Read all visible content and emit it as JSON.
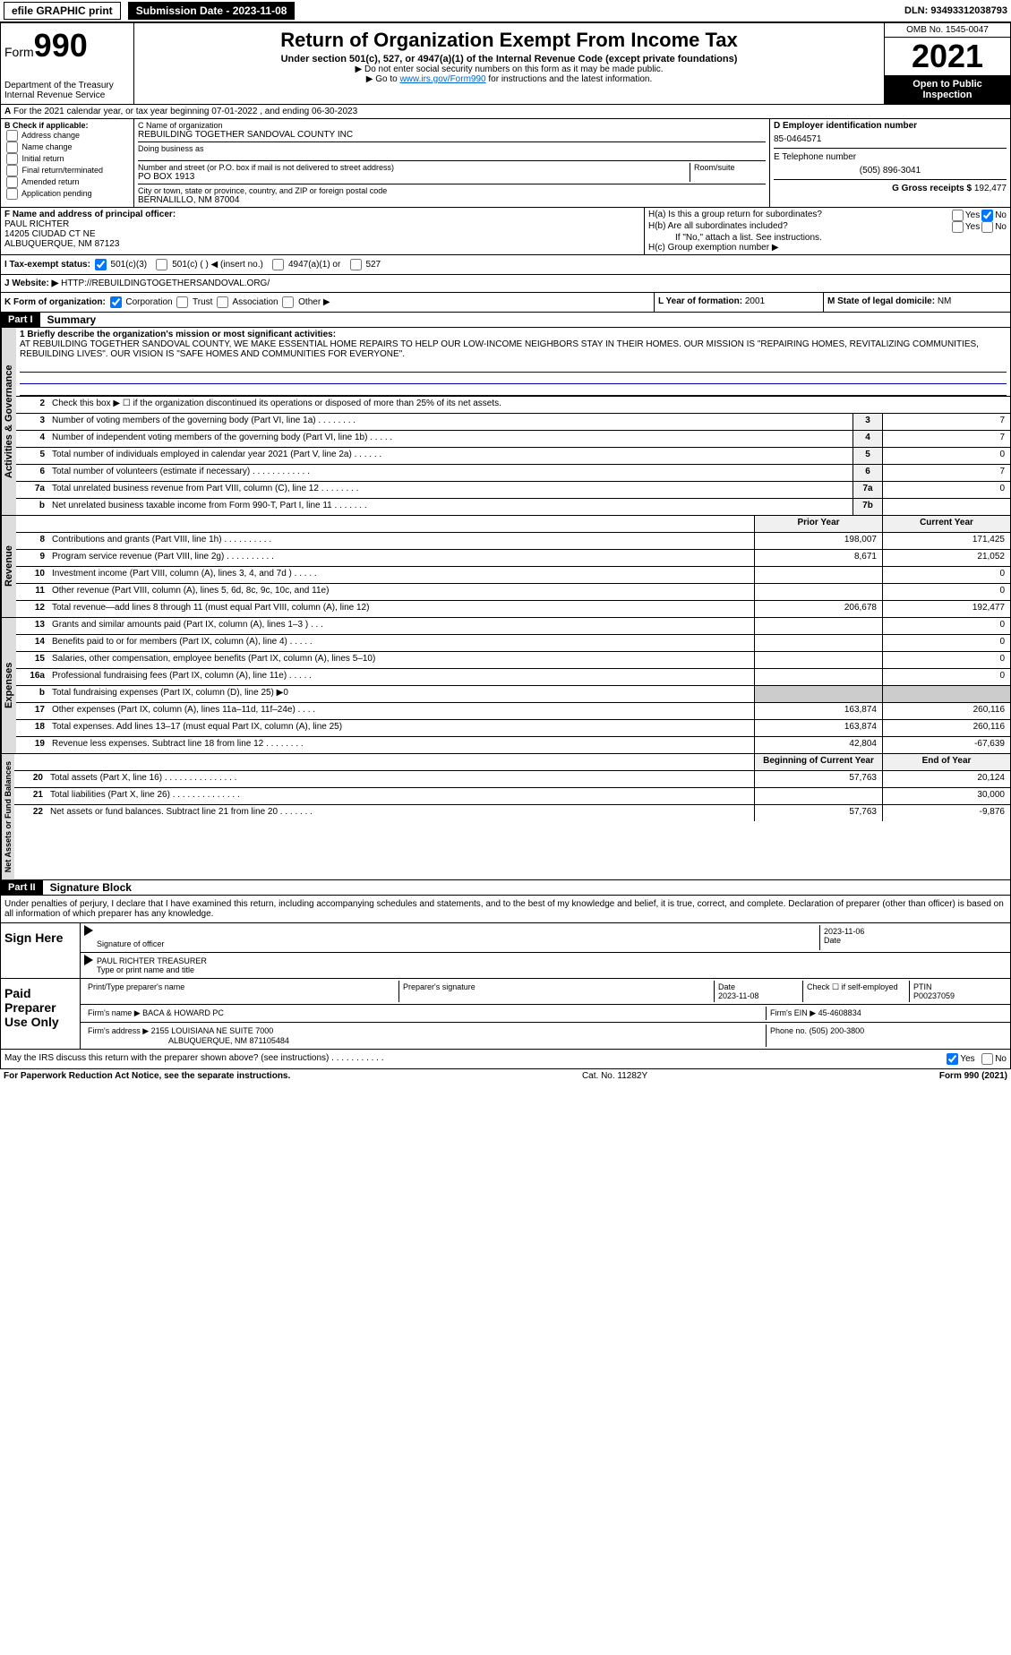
{
  "topbar": {
    "efile": "efile GRAPHIC print",
    "submission": "Submission Date - 2023-11-08",
    "dln": "DLN: 93493312038793"
  },
  "header": {
    "form": "Form",
    "form_num": "990",
    "dept": "Department of the Treasury",
    "irs": "Internal Revenue Service",
    "title": "Return of Organization Exempt From Income Tax",
    "subtitle": "Under section 501(c), 527, or 4947(a)(1) of the Internal Revenue Code (except private foundations)",
    "note1": "▶ Do not enter social security numbers on this form as it may be made public.",
    "note2_pre": "▶ Go to ",
    "note2_link": "www.irs.gov/Form990",
    "note2_post": " for instructions and the latest information.",
    "omb": "OMB No. 1545-0047",
    "year": "2021",
    "open": "Open to Public Inspection"
  },
  "line_a": {
    "text": "For the 2021 calendar year, or tax year beginning 07-01-2022   , and ending 06-30-2023"
  },
  "box_b": {
    "title": "B Check if applicable:",
    "items": [
      "Address change",
      "Name change",
      "Initial return",
      "Final return/terminated",
      "Amended return",
      "Application pending"
    ]
  },
  "box_c": {
    "label_name": "C Name of organization",
    "name": "REBUILDING TOGETHER SANDOVAL COUNTY INC",
    "dba_label": "Doing business as",
    "addr_label": "Number and street (or P.O. box if mail is not delivered to street address)",
    "room_label": "Room/suite",
    "addr": "PO BOX 1913",
    "city_label": "City or town, state or province, country, and ZIP or foreign postal code",
    "city": "BERNALILLO, NM  87004"
  },
  "box_d": {
    "label": "D Employer identification number",
    "val": "85-0464571"
  },
  "box_e": {
    "label": "E Telephone number",
    "val": "(505) 896-3041"
  },
  "box_g": {
    "label": "G Gross receipts $",
    "val": "192,477"
  },
  "box_f": {
    "label": "F Name and address of principal officer:",
    "name": "PAUL RICHTER",
    "addr1": "14205 CIUDAD CT NE",
    "addr2": "ALBUQUERQUE, NM  87123"
  },
  "box_h": {
    "a": "H(a)  Is this a group return for subordinates?",
    "b": "H(b)  Are all subordinates included?",
    "b_note": "If \"No,\" attach a list. See instructions.",
    "c": "H(c)  Group exemption number ▶",
    "yes": "Yes",
    "no": "No"
  },
  "box_i": {
    "label": "I  Tax-exempt status:",
    "opt1": "501(c)(3)",
    "opt2": "501(c) (  ) ◀ (insert no.)",
    "opt3": "4947(a)(1) or",
    "opt4": "527"
  },
  "box_j": {
    "label": "J  Website: ▶",
    "val": "HTTP://REBUILDINGTOGETHERSANDOVAL.ORG/"
  },
  "box_k": {
    "label": "K Form of organization:",
    "opts": [
      "Corporation",
      "Trust",
      "Association",
      "Other ▶"
    ]
  },
  "box_l": {
    "label": "L Year of formation:",
    "val": "2001"
  },
  "box_m": {
    "label": "M State of legal domicile:",
    "val": "NM"
  },
  "part1": {
    "hdr": "Part I",
    "title": "Summary",
    "l1_label": "1  Briefly describe the organization's mission or most significant activities:",
    "l1_text": "AT REBUILDING TOGETHER SANDOVAL COUNTY, WE MAKE ESSENTIAL HOME REPAIRS TO HELP OUR LOW-INCOME NEIGHBORS STAY IN THEIR HOMES. OUR MISSION IS \"REPAIRING HOMES, REVITALIZING COMMUNITIES, REBUILDING LIVES\". OUR VISION IS \"SAFE HOMES AND COMMUNITIES FOR EVERYONE\".",
    "l2": "Check this box ▶ ☐  if the organization discontinued its operations or disposed of more than 25% of its net assets.",
    "tabs": [
      "Activities & Governance",
      "Revenue",
      "Expenses",
      "Net Assets or Fund Balances"
    ],
    "col_prior": "Prior Year",
    "col_current": "Current Year",
    "col_begin": "Beginning of Current Year",
    "col_end": "End of Year",
    "rows_gov": [
      {
        "n": "3",
        "d": "Number of voting members of the governing body (Part VI, line 1a)   .    .    .    .    .    .    .    .",
        "b": "3",
        "v": "7"
      },
      {
        "n": "4",
        "d": "Number of independent voting members of the governing body (Part VI, line 1b)  .    .    .    .    .",
        "b": "4",
        "v": "7"
      },
      {
        "n": "5",
        "d": "Total number of individuals employed in calendar year 2021 (Part V, line 2a)  .    .    .    .    .    .",
        "b": "5",
        "v": "0"
      },
      {
        "n": "6",
        "d": "Total number of volunteers (estimate if necessary)    .    .    .    .    .    .    .    .    .    .    .    .",
        "b": "6",
        "v": "7"
      },
      {
        "n": "7a",
        "d": "Total unrelated business revenue from Part VIII, column (C), line 12  .    .    .    .    .    .    .    .",
        "b": "7a",
        "v": "0"
      },
      {
        "n": "b",
        "d": "Net unrelated business taxable income from Form 990-T, Part I, line 11   .    .    .    .    .    .    .",
        "b": "7b",
        "v": ""
      }
    ],
    "rows_rev": [
      {
        "n": "8",
        "d": "Contributions and grants (Part VIII, line 1h)   .    .    .    .    .    .    .    .    .    .",
        "p": "198,007",
        "c": "171,425"
      },
      {
        "n": "9",
        "d": "Program service revenue (Part VIII, line 2g)   .    .    .    .    .    .    .    .    .    .",
        "p": "8,671",
        "c": "21,052"
      },
      {
        "n": "10",
        "d": "Investment income (Part VIII, column (A), lines 3, 4, and 7d )  .    .    .    .    .",
        "p": "",
        "c": "0"
      },
      {
        "n": "11",
        "d": "Other revenue (Part VIII, column (A), lines 5, 6d, 8c, 9c, 10c, and 11e)",
        "p": "",
        "c": "0"
      },
      {
        "n": "12",
        "d": "Total revenue—add lines 8 through 11 (must equal Part VIII, column (A), line 12)",
        "p": "206,678",
        "c": "192,477"
      }
    ],
    "rows_exp": [
      {
        "n": "13",
        "d": "Grants and similar amounts paid (Part IX, column (A), lines 1–3 )  .    .    .",
        "p": "",
        "c": "0"
      },
      {
        "n": "14",
        "d": "Benefits paid to or for members (Part IX, column (A), line 4)  .    .    .    .    .",
        "p": "",
        "c": "0"
      },
      {
        "n": "15",
        "d": "Salaries, other compensation, employee benefits (Part IX, column (A), lines 5–10)",
        "p": "",
        "c": "0"
      },
      {
        "n": "16a",
        "d": "Professional fundraising fees (Part IX, column (A), line 11e)  .    .    .    .    .",
        "p": "",
        "c": "0"
      },
      {
        "n": "b",
        "d": "Total fundraising expenses (Part IX, column (D), line 25) ▶0",
        "p": "—",
        "c": "—"
      },
      {
        "n": "17",
        "d": "Other expenses (Part IX, column (A), lines 11a–11d, 11f–24e)   .    .    .    .",
        "p": "163,874",
        "c": "260,116"
      },
      {
        "n": "18",
        "d": "Total expenses. Add lines 13–17 (must equal Part IX, column (A), line 25)",
        "p": "163,874",
        "c": "260,116"
      },
      {
        "n": "19",
        "d": "Revenue less expenses. Subtract line 18 from line 12 .    .    .    .    .    .    .    .",
        "p": "42,804",
        "c": "-67,639"
      }
    ],
    "rows_net": [
      {
        "n": "20",
        "d": "Total assets (Part X, line 16)  .    .    .    .    .    .    .    .    .    .    .    .    .    .    .",
        "p": "57,763",
        "c": "20,124"
      },
      {
        "n": "21",
        "d": "Total liabilities (Part X, line 26)  .    .    .    .    .    .    .    .    .    .    .    .    .    .",
        "p": "",
        "c": "30,000"
      },
      {
        "n": "22",
        "d": "Net assets or fund balances. Subtract line 21 from line 20  .    .    .    .    .    .    .",
        "p": "57,763",
        "c": "-9,876"
      }
    ]
  },
  "part2": {
    "hdr": "Part II",
    "title": "Signature Block",
    "decl": "Under penalties of perjury, I declare that I have examined this return, including accompanying schedules and statements, and to the best of my knowledge and belief, it is true, correct, and complete. Declaration of preparer (other than officer) is based on all information of which preparer has any knowledge.",
    "sign_here": "Sign Here",
    "sig_officer": "Signature of officer",
    "sig_date": "2023-11-06",
    "date_label": "Date",
    "officer_name": "PAUL RICHTER TREASURER",
    "type_name": "Type or print name and title",
    "paid": "Paid Preparer Use Only",
    "prep_name_label": "Print/Type preparer's name",
    "prep_sig_label": "Preparer's signature",
    "prep_date_label": "Date",
    "prep_date": "2023-11-08",
    "check_self": "Check ☐ if self-employed",
    "ptin_label": "PTIN",
    "ptin": "P00237059",
    "firm_name_label": "Firm's name    ▶",
    "firm_name": "BACA & HOWARD PC",
    "firm_ein_label": "Firm's EIN ▶",
    "firm_ein": "45-4608834",
    "firm_addr_label": "Firm's address ▶",
    "firm_addr1": "2155 LOUISIANA NE SUITE 7000",
    "firm_addr2": "ALBUQUERQUE, NM  871105484",
    "phone_label": "Phone no.",
    "phone": "(505) 200-3800",
    "may_irs": "May the IRS discuss this return with the preparer shown above? (see instructions)   .    .    .    .    .    .    .    .    .    .    .",
    "yes": "Yes",
    "no": "No"
  },
  "footer": {
    "left": "For Paperwork Reduction Act Notice, see the separate instructions.",
    "mid": "Cat. No. 11282Y",
    "right": "Form 990 (2021)"
  },
  "colors": {
    "link": "#0066cc",
    "rule": "#0000aa"
  }
}
